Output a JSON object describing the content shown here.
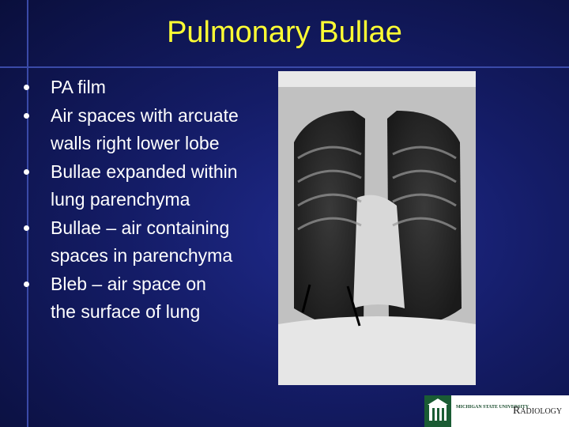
{
  "title": "Pulmonary Bullae",
  "bullets": [
    {
      "lines": [
        "PA film"
      ]
    },
    {
      "lines": [
        "Air spaces with arcuate",
        "walls right lower lobe"
      ]
    },
    {
      "lines": [
        "Bullae expanded within",
        "lung parenchyma"
      ]
    },
    {
      "lines": [
        "Bullae – air containing",
        "spaces in parenchyma"
      ]
    },
    {
      "lines": [
        "Bleb – air space on",
        "the surface of lung"
      ]
    }
  ],
  "logo": {
    "line1": "MICHIGAN STATE UNIVERSITY",
    "line2": "Radiology"
  }
}
